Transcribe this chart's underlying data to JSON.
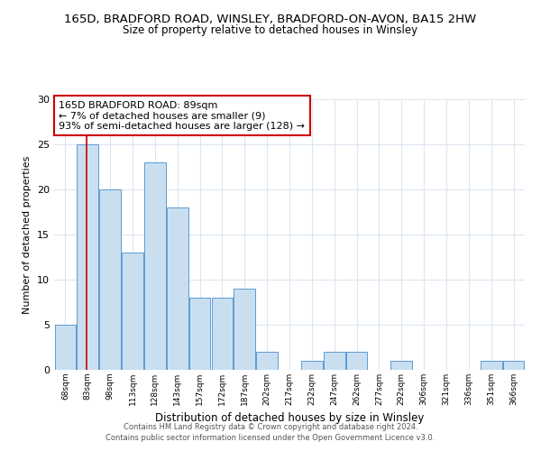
{
  "title": "165D, BRADFORD ROAD, WINSLEY, BRADFORD-ON-AVON, BA15 2HW",
  "subtitle": "Size of property relative to detached houses in Winsley",
  "xlabel": "Distribution of detached houses by size in Winsley",
  "ylabel": "Number of detached properties",
  "bar_labels": [
    "68sqm",
    "83sqm",
    "98sqm",
    "113sqm",
    "128sqm",
    "143sqm",
    "157sqm",
    "172sqm",
    "187sqm",
    "202sqm",
    "217sqm",
    "232sqm",
    "247sqm",
    "262sqm",
    "277sqm",
    "292sqm",
    "306sqm",
    "321sqm",
    "336sqm",
    "351sqm",
    "366sqm"
  ],
  "bar_values": [
    5,
    25,
    20,
    13,
    23,
    18,
    8,
    8,
    9,
    2,
    0,
    1,
    2,
    2,
    0,
    1,
    0,
    0,
    0,
    1,
    1
  ],
  "bar_color": "#c9dff0",
  "bar_edge_color": "#5b9bd5",
  "subject_line_color": "#cc0000",
  "annotation_text_line1": "165D BRADFORD ROAD: 89sqm",
  "annotation_text_line2": "← 7% of detached houses are smaller (9)",
  "annotation_text_line3": "93% of semi-detached houses are larger (128) →",
  "annotation_box_color": "#ffffff",
  "annotation_box_edge_color": "#cc0000",
  "ylim": [
    0,
    30
  ],
  "yticks": [
    0,
    5,
    10,
    15,
    20,
    25,
    30
  ],
  "footer_line1": "Contains HM Land Registry data © Crown copyright and database right 2024.",
  "footer_line2": "Contains public sector information licensed under the Open Government Licence v3.0.",
  "bg_color": "#ffffff",
  "grid_color": "#dce6f0"
}
